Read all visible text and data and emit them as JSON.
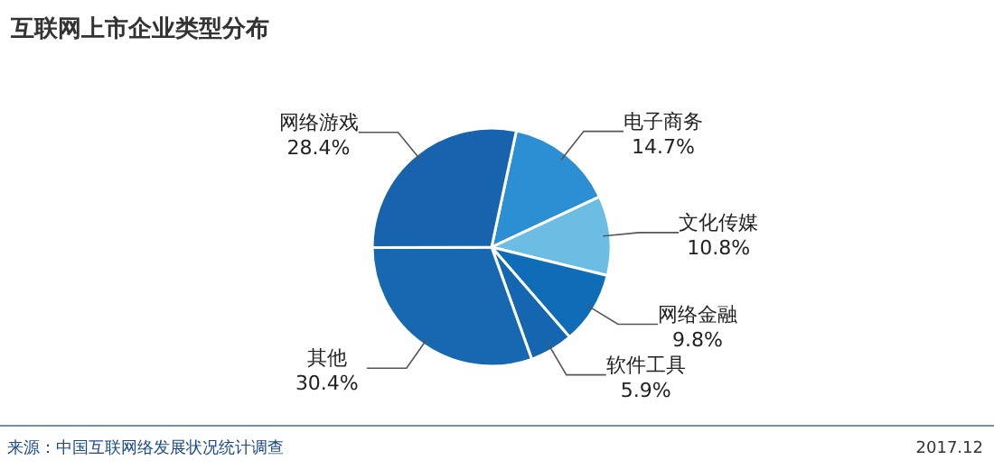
{
  "chart_data": {
    "type": "pie",
    "title": "互联网上市企业类型分布",
    "categories": [
      "电子商务",
      "文化传媒",
      "网络金融",
      "软件工具",
      "其他",
      "网络游戏"
    ],
    "values": [
      14.7,
      10.8,
      9.8,
      5.9,
      30.4,
      28.4
    ],
    "colors": [
      "#2c8fd4",
      "#6cbde3",
      "#0f6db8",
      "#1566b0",
      "#1668b1",
      "#1863ad"
    ],
    "value_labels": [
      "14.7%",
      "10.8%",
      "9.8%",
      "5.9%",
      "30.4%",
      "28.4%"
    ],
    "annotations": [
      "来源：中国互联网络发展状况统计调查",
      "2017.12"
    ]
  }
}
